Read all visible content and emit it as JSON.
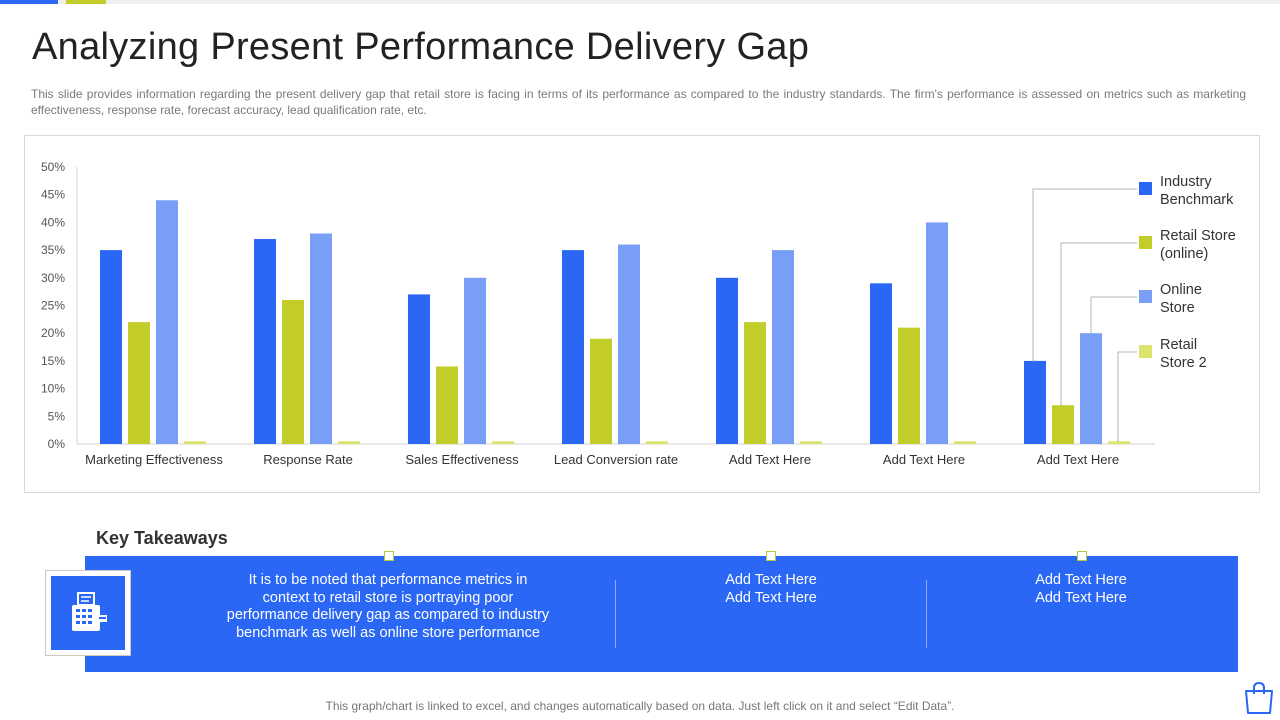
{
  "colors": {
    "blue": "#2a67f5",
    "green": "#c2cd2a",
    "light_blue": "#789ff5",
    "pale_green": "#dde46e"
  },
  "title": "Analyzing Present Performance Delivery Gap",
  "description": "This slide provides information regarding the present delivery gap that retail store is facing in terms of its performance as compared to the industry standards. The firm's performance is assessed on metrics such as marketing effectiveness, response rate, forecast accuracy, lead qualification rate, etc.",
  "chart_data": {
    "type": "bar",
    "categories": [
      "Marketing Effectiveness",
      "Response Rate",
      "Sales Effectiveness",
      "Lead Conversion rate",
      "Add Text Here",
      "Add Text Here",
      "Add Text Here"
    ],
    "series": [
      {
        "name": "Industry Benchmark",
        "legend_lines": [
          "Industry",
          "Benchmark"
        ],
        "color": "#2a67f5",
        "values": [
          35,
          37,
          27,
          35,
          30,
          29,
          15
        ]
      },
      {
        "name": "Retail Store (online)",
        "legend_lines": [
          "Retail Store",
          "(online)"
        ],
        "color": "#c2cd2a",
        "values": [
          22,
          26,
          14,
          19,
          22,
          21,
          7
        ]
      },
      {
        "name": "Online Store",
        "legend_lines": [
          "Online",
          "Store"
        ],
        "color": "#789ff5",
        "values": [
          44,
          38,
          30,
          36,
          35,
          40,
          20
        ]
      },
      {
        "name": "Retail Store 2",
        "legend_lines": [
          "Retail",
          "Store 2"
        ],
        "color": "#dde46e",
        "values": [
          0.5,
          0.5,
          0.5,
          0.5,
          0.5,
          0.5,
          0.5
        ]
      }
    ],
    "y_ticks": [
      "0%",
      "5%",
      "10%",
      "15%",
      "20%",
      "25%",
      "30%",
      "35%",
      "40%",
      "45%",
      "50%"
    ],
    "ylim": [
      0,
      50
    ],
    "legend_position": "right",
    "grid": false
  },
  "key_takeaways": {
    "heading": "Key Takeaways",
    "icon": "cash-register-icon",
    "items": [
      {
        "lines": [
          "It is to be noted that performance metrics in",
          "context to retail store is portraying poor",
          "performance delivery gap as compared to industry",
          "benchmark as well as online store performance"
        ]
      },
      {
        "lines": [
          "Add Text Here",
          "Add Text Here"
        ]
      },
      {
        "lines": [
          "Add Text Here",
          "Add Text Here"
        ]
      }
    ]
  },
  "footer_note": "This graph/chart is linked to excel, and changes automatically based on data. Just left click on it and select “Edit Data”.",
  "corner_icon": "shopping-bag-icon"
}
